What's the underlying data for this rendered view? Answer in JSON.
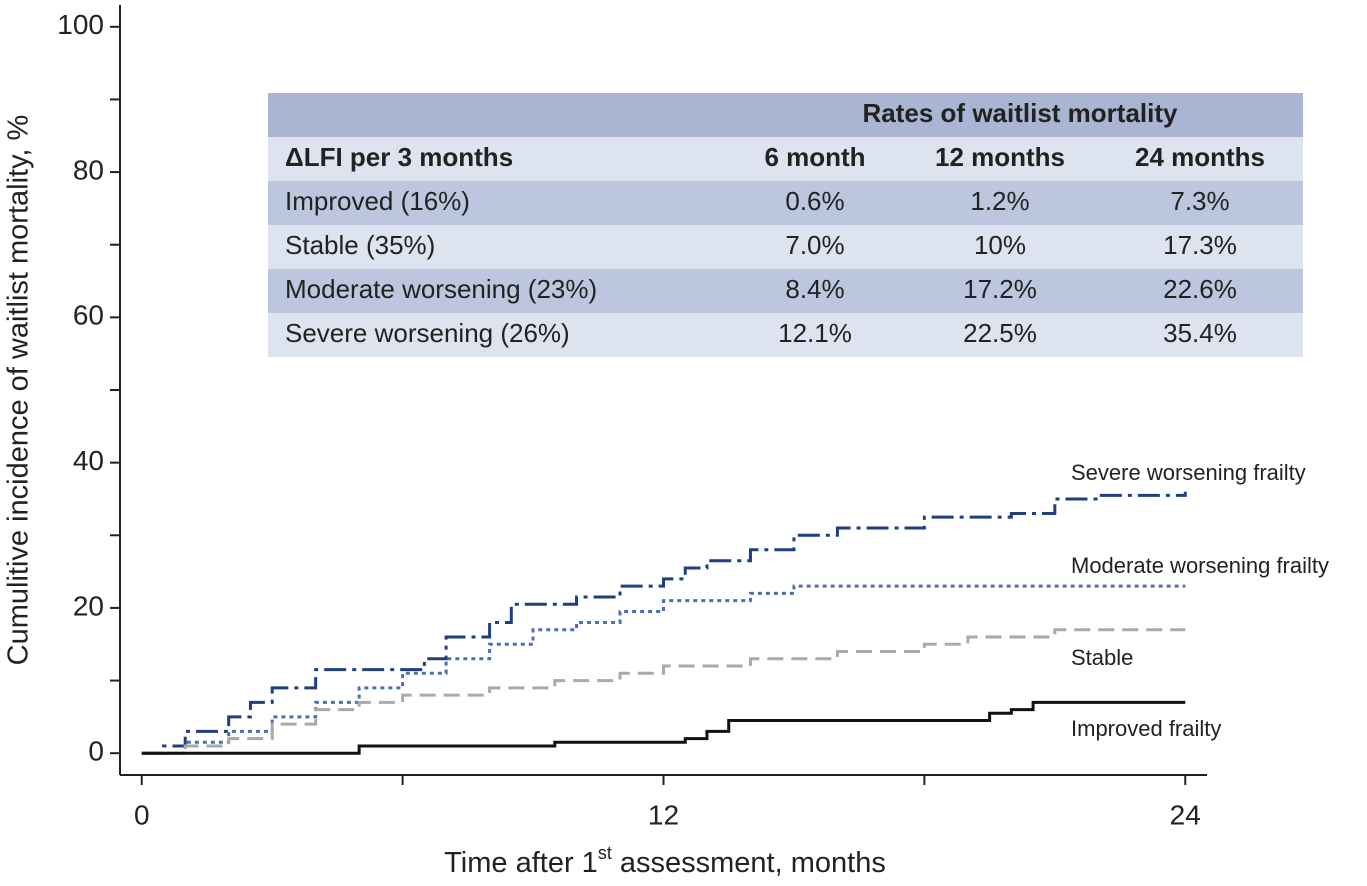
{
  "chart_data": {
    "type": "step-line",
    "ylabel": "Cumulitive incidence of waitlist mortality, %",
    "xlabel": [
      "Time after 1",
      "st",
      " assessment, months"
    ],
    "xlim": [
      -0.5,
      24.5
    ],
    "ylim": [
      -3,
      103
    ],
    "xticks": [
      0,
      12,
      24
    ],
    "xminorticks": [
      6,
      18
    ],
    "yticks": [
      0,
      20,
      40,
      60,
      80,
      100
    ],
    "yminorticks": [
      10,
      30,
      50,
      70,
      90
    ],
    "series": [
      {
        "name": "Severe worsening frailty",
        "color": "#1f3f7f",
        "style": "dashdot",
        "x": [
          0,
          0.5,
          1,
          2,
          2.5,
          3,
          4,
          6.5,
          7,
          8,
          8.5,
          10,
          11,
          12,
          12.5,
          13,
          14,
          15,
          16,
          18,
          20,
          21,
          22,
          24
        ],
        "values": [
          0,
          1,
          3,
          5,
          7,
          9,
          11.5,
          13,
          16,
          18,
          20.5,
          21.5,
          23,
          24,
          25.5,
          26.5,
          28,
          30,
          31,
          32.5,
          33,
          35,
          35.5,
          36
        ]
      },
      {
        "name": "Moderate worsening frailty",
        "color": "#4a6fb5",
        "style": "dotted",
        "x": [
          0,
          1,
          2,
          3,
          4,
          5,
          6,
          7,
          8,
          9,
          10,
          11,
          12,
          14,
          15,
          24
        ],
        "values": [
          0,
          1.5,
          3,
          5,
          7,
          9,
          11,
          13,
          15,
          17,
          18,
          19.5,
          21,
          22,
          23,
          23
        ]
      },
      {
        "name": "Stable",
        "color": "#aaaaaa",
        "style": "dashed",
        "x": [
          0,
          1,
          2,
          3,
          4,
          5,
          6,
          8,
          9.5,
          11,
          12,
          14,
          16,
          18,
          19,
          21,
          24
        ],
        "values": [
          0,
          1,
          2,
          4,
          6,
          7,
          8,
          9,
          10,
          11,
          12,
          13,
          14,
          15,
          16,
          17,
          17
        ]
      },
      {
        "name": "Improved frailty",
        "color": "#111111",
        "style": "solid",
        "x": [
          0,
          5,
          9.5,
          12.5,
          13,
          13.5,
          19,
          19.5,
          20,
          20.5,
          24
        ],
        "values": [
          0,
          1,
          1.5,
          2,
          3,
          4.5,
          4.5,
          5.5,
          6,
          7,
          7
        ]
      }
    ]
  },
  "table": {
    "title": "Rates of waitlist mortality",
    "header": [
      "ΔLFI per 3 months",
      "6 month",
      "12 months",
      "24 months"
    ],
    "rows": [
      [
        "Improved (16%)",
        "0.6%",
        "1.2%",
        "7.3%"
      ],
      [
        "Stable (35%)",
        "7.0%",
        "10%",
        "17.3%"
      ],
      [
        "Moderate worsening (23%)",
        "8.4%",
        "17.2%",
        "22.6%"
      ],
      [
        "Severe worsening (26%)",
        "12.1%",
        "22.5%",
        "35.4%"
      ]
    ]
  }
}
